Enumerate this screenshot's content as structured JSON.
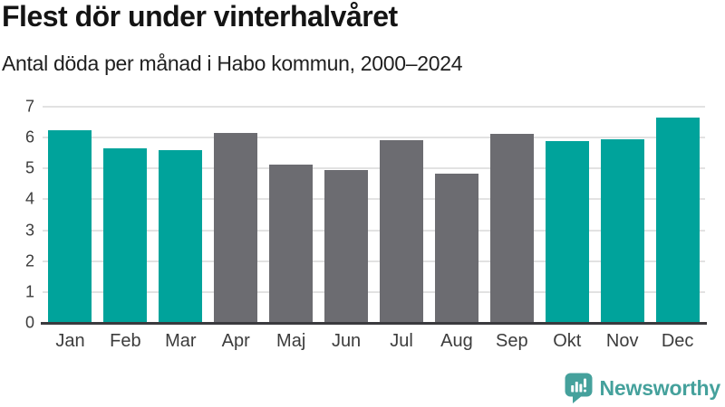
{
  "chart_data": {
    "type": "bar",
    "title": "Flest dör under vinterhalvåret",
    "subtitle": "Antal döda per månad i Habo kommun, 2000–2024",
    "categories": [
      "Jan",
      "Feb",
      "Mar",
      "Apr",
      "Maj",
      "Jun",
      "Jul",
      "Aug",
      "Sep",
      "Okt",
      "Nov",
      "Dec"
    ],
    "values": [
      6.24,
      5.64,
      5.6,
      6.16,
      5.12,
      4.96,
      5.92,
      4.84,
      6.12,
      5.88,
      5.96,
      6.64
    ],
    "bar_roles": [
      "highlight",
      "highlight",
      "highlight",
      "default",
      "default",
      "default",
      "default",
      "default",
      "default",
      "highlight",
      "highlight",
      "highlight"
    ],
    "xlabel": "",
    "ylabel": "",
    "ylim": [
      0,
      7
    ],
    "yticks": [
      0,
      1,
      2,
      3,
      4,
      5,
      6,
      7
    ],
    "grid": true,
    "legend": false,
    "colors": {
      "highlight": "#00a39b",
      "default": "#6c6c71",
      "gridline": "#e2e2e2",
      "axis_line": "#3a3a3e",
      "tick_text": "#3c3c3c"
    }
  },
  "branding": {
    "logo_text": "Newsworthy",
    "logo_color": "#45a19c",
    "logo_icon": "newsworthy-logo-icon"
  }
}
